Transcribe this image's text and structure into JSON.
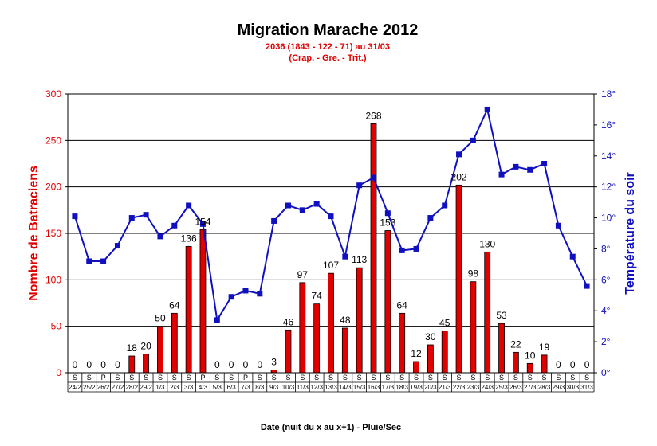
{
  "chart_data": {
    "type": "bar",
    "title": "Migration Marache 2012",
    "subtitle_line1": "2036 (1843 - 122 - 71) au 31/03",
    "subtitle_line2": "(Crap. - Gre. - Trit.)",
    "xlabel": "Date (nuit du x au x+1) - Pluie/Sec",
    "ylabel": "Nombre de Batraciens",
    "y2label": "Température du soir",
    "ylim": [
      0,
      300
    ],
    "y_ticks": [
      "0",
      "50",
      "100",
      "150",
      "200",
      "250",
      "300"
    ],
    "y2lim": [
      0,
      18
    ],
    "y2_ticks": [
      "0°",
      "2°",
      "4°",
      "6°",
      "8°",
      "10°",
      "12°",
      "14°",
      "16°",
      "18°"
    ],
    "categories": [
      "24/2",
      "25/2",
      "26/2",
      "27/2",
      "28/2",
      "29/2",
      "1/3",
      "2/3",
      "3/3",
      "4/3",
      "5/3",
      "6/3",
      "7/3",
      "8/3",
      "9/3",
      "10/3",
      "11/3",
      "12/3",
      "13/3",
      "14/3",
      "15/3",
      "16/3",
      "17/3",
      "18/3",
      "19/3",
      "20/3",
      "21/3",
      "22/3",
      "23/3",
      "24/3",
      "25/3",
      "26/3",
      "27/3",
      "28/3",
      "29/3",
      "30/3",
      "31/3"
    ],
    "conditions": [
      "S",
      "S",
      "P",
      "S",
      "S",
      "S",
      "S",
      "S",
      "S",
      "P",
      "S",
      "S",
      "P",
      "S",
      "S",
      "S",
      "S",
      "S",
      "S",
      "S",
      "S",
      "S",
      "S",
      "S",
      "S",
      "S",
      "S",
      "S",
      "S",
      "S",
      "S",
      "S",
      "S",
      "S",
      "S",
      "S",
      "S"
    ],
    "series": [
      {
        "name": "Nombre de Batraciens",
        "kind": "bar",
        "axis": "left",
        "color": "#e00000",
        "values": [
          0,
          0,
          0,
          0,
          18,
          20,
          50,
          64,
          136,
          154,
          0,
          0,
          0,
          0,
          3,
          46,
          97,
          74,
          107,
          48,
          113,
          268,
          153,
          64,
          12,
          30,
          45,
          202,
          98,
          130,
          53,
          22,
          10,
          19,
          0,
          0,
          0
        ],
        "labels": [
          "0",
          "0",
          "0",
          "0",
          "18",
          "20",
          "50",
          "64",
          "136",
          "154",
          "0",
          "0",
          "0",
          "0",
          "3",
          "46",
          "97",
          "74",
          "107",
          "48",
          "113",
          "268",
          "153",
          "64",
          "12",
          "30",
          "45",
          "202",
          "98",
          "130",
          "53",
          "22",
          "10",
          "19",
          "0",
          "0",
          "0"
        ]
      },
      {
        "name": "Température du soir",
        "kind": "line",
        "axis": "right",
        "color": "#1010c0",
        "values": [
          10.1,
          7.2,
          7.2,
          8.2,
          10.0,
          10.2,
          8.8,
          9.5,
          10.8,
          9.6,
          3.4,
          4.9,
          5.3,
          5.1,
          9.8,
          10.8,
          10.5,
          10.9,
          10.1,
          7.5,
          12.1,
          12.6,
          10.3,
          7.9,
          8.0,
          10.0,
          10.8,
          14.1,
          15.0,
          17.0,
          12.8,
          13.3,
          13.1,
          13.5,
          9.5,
          7.5,
          5.6
        ]
      }
    ],
    "grid": true,
    "legend": "none"
  }
}
